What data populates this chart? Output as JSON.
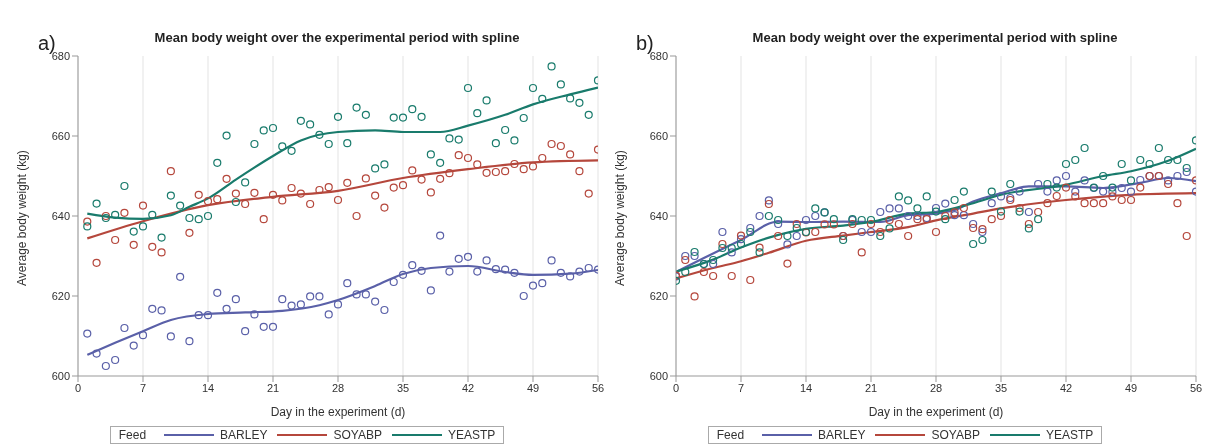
{
  "chart_data": [
    {
      "type": "scatter",
      "title": "Mean body weight over the experimental period with spline",
      "xlabel": "Day in the experiment (d)",
      "ylabel": "Average body weight (kg)",
      "legend_title": "Feed",
      "annotations": [
        "a)"
      ],
      "xlim": [
        0,
        56
      ],
      "xticks": [
        0,
        7,
        14,
        21,
        28,
        35,
        42,
        49,
        56
      ],
      "ylim": [
        600,
        680
      ],
      "yticks": [
        600,
        620,
        640,
        660,
        680
      ],
      "grid": "x",
      "legend": "bottom",
      "series": [
        {
          "type": "scatter",
          "marker": "circle",
          "color": "#5a60a8",
          "x": [
            1,
            2,
            3,
            4,
            5,
            6,
            7,
            8,
            9,
            10,
            11,
            12,
            13,
            14,
            15,
            16,
            17,
            18,
            19,
            20,
            21,
            22,
            23,
            24,
            25,
            26,
            27,
            28,
            29,
            30,
            31,
            32,
            33,
            34,
            35,
            36,
            37,
            38,
            39,
            40,
            41,
            42,
            43,
            44,
            45,
            46,
            47,
            48,
            49,
            50,
            51,
            52,
            53,
            54,
            55,
            56
          ],
          "values": [
            610.6,
            605.6,
            602.5,
            604,
            612,
            607.6,
            610.2,
            616.8,
            616.4,
            609.9,
            624.8,
            608.7,
            615.2,
            615.2,
            620.8,
            616.8,
            619.2,
            611.2,
            615.4,
            612.3,
            612.3,
            619.2,
            617.6,
            617.9,
            619.9,
            619.9,
            615.4,
            617.9,
            623.2,
            620.4,
            620.4,
            618.6,
            616.5,
            623.5,
            625.3,
            627.7,
            626.3,
            621.4,
            635.1,
            626.1,
            629.3,
            629.8,
            626.1,
            628.9,
            626.7,
            626.6,
            625.8,
            620,
            622.6,
            623.2,
            628.9,
            625.8,
            624.9,
            626.1,
            627,
            626.6
          ]
        },
        {
          "type": "scatter",
          "marker": "circle",
          "color": "#b5473c",
          "x": [
            1,
            2,
            3,
            4,
            5,
            6,
            7,
            8,
            9,
            10,
            11,
            12,
            13,
            14,
            15,
            16,
            17,
            18,
            19,
            20,
            21,
            22,
            23,
            24,
            25,
            26,
            27,
            28,
            29,
            30,
            31,
            32,
            33,
            34,
            35,
            36,
            37,
            38,
            39,
            40,
            41,
            42,
            43,
            44,
            45,
            46,
            47,
            48,
            49,
            50,
            51,
            52,
            53,
            54,
            55,
            56
          ],
          "values": [
            638.6,
            628.3,
            640,
            634,
            640.8,
            632.8,
            642.6,
            632.3,
            630.9,
            651.2,
            null,
            635.8,
            645.3,
            643.7,
            644.2,
            649.3,
            645.6,
            643,
            645.8,
            639.2,
            645.3,
            643.9,
            647,
            645.6,
            643,
            646.5,
            647.2,
            644,
            648.3,
            640,
            649.4,
            645.1,
            642.1,
            647.1,
            647.7,
            651.4,
            649.1,
            645.9,
            649.3,
            650.7,
            655.2,
            654.5,
            652.9,
            650.8,
            651,
            651.2,
            653,
            651.7,
            652.4,
            654.5,
            658,
            657.5,
            655.4,
            651.2,
            645.6,
            656.6
          ]
        },
        {
          "type": "scatter",
          "marker": "circle",
          "color": "#197b6c",
          "x": [
            1,
            2,
            3,
            4,
            5,
            6,
            7,
            8,
            9,
            10,
            11,
            12,
            13,
            14,
            15,
            16,
            17,
            18,
            19,
            20,
            21,
            22,
            23,
            24,
            25,
            26,
            27,
            28,
            29,
            30,
            31,
            32,
            33,
            34,
            35,
            36,
            37,
            38,
            39,
            40,
            41,
            42,
            43,
            44,
            45,
            46,
            47,
            48,
            49,
            50,
            51,
            52,
            53,
            54,
            55,
            56
          ],
          "values": [
            637.4,
            643.1,
            639.5,
            640.3,
            647.5,
            636.1,
            637.4,
            640.3,
            634.6,
            645.1,
            642.6,
            639.5,
            639.2,
            640,
            653.3,
            660.1,
            643.5,
            648.4,
            658,
            661.4,
            662,
            657.4,
            656.3,
            663.8,
            662.9,
            660.3,
            658,
            664.8,
            658.2,
            667.1,
            665.3,
            651.9,
            652.9,
            664.6,
            664.6,
            666.7,
            664.8,
            655.4,
            653.3,
            659.4,
            659.1,
            672,
            665.7,
            668.9,
            658.2,
            661.5,
            658.9,
            664.5,
            672,
            669.3,
            677.4,
            672.9,
            669.4,
            668.3,
            665.3,
            673.9
          ]
        },
        {
          "type": "line",
          "marker": "none",
          "name": "BARLEY",
          "color": "#5a60a8",
          "x": [
            1,
            4,
            7,
            10,
            14,
            18,
            22,
            26,
            28,
            32,
            35,
            38,
            42,
            46,
            49,
            53,
            56
          ],
          "values": [
            605.3,
            608.3,
            611.2,
            614,
            615.5,
            615.9,
            616.3,
            617.7,
            619,
            622.5,
            625.5,
            627,
            627.5,
            626,
            625.3,
            625.6,
            626.5
          ]
        },
        {
          "type": "line",
          "marker": "none",
          "name": "SOYABP",
          "color": "#b5473c",
          "x": [
            1,
            7,
            14,
            21,
            28,
            35,
            42,
            49,
            56
          ],
          "values": [
            634.4,
            638.7,
            642.7,
            644.8,
            646.3,
            649.5,
            651.7,
            653.4,
            653.9
          ]
        },
        {
          "type": "line",
          "marker": "none",
          "name": "YEASTP",
          "color": "#197b6c",
          "x": [
            1,
            4,
            7,
            10,
            12,
            14,
            17,
            21,
            24,
            28,
            32,
            35,
            39,
            42,
            46,
            49,
            53,
            56
          ],
          "values": [
            640.6,
            639.6,
            639.3,
            640.2,
            642.3,
            644.4,
            649.1,
            655,
            658.9,
            661,
            661.4,
            661,
            661,
            662.6,
            665.3,
            667.9,
            670.4,
            672.1
          ]
        }
      ]
    },
    {
      "type": "scatter",
      "title": "Mean body weight over the experimental period with spline",
      "xlabel": "Day in the experiment (d)",
      "ylabel": "Average body weight (kg)",
      "legend_title": "Feed",
      "annotations": [
        "b)"
      ],
      "xlim": [
        0,
        56
      ],
      "xticks": [
        0,
        7,
        14,
        21,
        28,
        35,
        42,
        49,
        56
      ],
      "ylim": [
        600,
        680
      ],
      "yticks": [
        600,
        620,
        640,
        660,
        680
      ],
      "grid": "x",
      "legend": "bottom",
      "series": [
        {
          "type": "scatter",
          "marker": "circle",
          "color": "#5a60a8",
          "x": [
            0,
            1,
            2,
            3,
            4,
            5,
            6,
            7,
            8,
            9,
            10,
            11,
            12,
            13,
            14,
            15,
            16,
            17,
            18,
            19,
            20,
            21,
            22,
            23,
            24,
            25,
            26,
            27,
            28,
            29,
            30,
            31,
            32,
            33,
            34,
            35,
            36,
            37,
            38,
            39,
            40,
            41,
            42,
            43,
            44,
            45,
            46,
            47,
            48,
            49,
            50,
            51,
            52,
            53,
            54,
            55,
            56
          ],
          "values": [
            624.9,
            630,
            630,
            628,
            628,
            636,
            630.9,
            634.2,
            637,
            640,
            643.9,
            638,
            632.9,
            635,
            639,
            640,
            640.9,
            null,
            635,
            639,
            636,
            636,
            641,
            641.9,
            641.9,
            640,
            640,
            639.5,
            642,
            643.1,
            640.2,
            640.2,
            638,
            636,
            643.2,
            644.9,
            644.5,
            646.1,
            641,
            648,
            646.1,
            648.9,
            650,
            646.1,
            648.9,
            647,
            646.1,
            646,
            647,
            646.1,
            649,
            650,
            650,
            648.9,
            650,
            651,
            646.1
          ]
        },
        {
          "type": "scatter",
          "marker": "circle",
          "color": "#b5473c",
          "x": [
            0,
            1,
            2,
            3,
            4,
            5,
            6,
            7,
            8,
            9,
            10,
            11,
            12,
            13,
            14,
            15,
            16,
            17,
            18,
            19,
            20,
            21,
            22,
            23,
            24,
            25,
            26,
            27,
            28,
            29,
            30,
            31,
            32,
            33,
            34,
            35,
            36,
            37,
            38,
            39,
            40,
            41,
            42,
            43,
            44,
            45,
            46,
            47,
            48,
            49,
            50,
            51,
            52,
            53,
            54,
            55,
            56
          ],
          "values": [
            625.1,
            629,
            619.9,
            626,
            625,
            633,
            625,
            635.1,
            624,
            632.1,
            643,
            635,
            628.1,
            638,
            635.9,
            636,
            637.9,
            637.9,
            635,
            638,
            630.9,
            638,
            636,
            639,
            638,
            635,
            639.2,
            639.2,
            636,
            640,
            640.9,
            642,
            637,
            636.7,
            639.2,
            640,
            644,
            642,
            638,
            641,
            643.2,
            645,
            647.1,
            644.9,
            643.2,
            643.2,
            643.2,
            644.9,
            644,
            644,
            647.1,
            650,
            650,
            648,
            643.2,
            635,
            648.9
          ]
        },
        {
          "type": "scatter",
          "marker": "circle",
          "color": "#197b6c",
          "x": [
            0,
            1,
            2,
            3,
            4,
            5,
            6,
            7,
            8,
            9,
            10,
            11,
            12,
            13,
            14,
            15,
            16,
            17,
            18,
            19,
            20,
            21,
            22,
            23,
            24,
            25,
            26,
            27,
            28,
            29,
            30,
            31,
            32,
            33,
            34,
            35,
            36,
            37,
            38,
            39,
            40,
            41,
            42,
            43,
            44,
            45,
            46,
            47,
            48,
            49,
            50,
            51,
            52,
            53,
            54,
            55,
            56
          ],
          "values": [
            623.8,
            626,
            631,
            628,
            629,
            632,
            632,
            633,
            636,
            630.9,
            640,
            639,
            635,
            637,
            636,
            641.9,
            640.9,
            639.2,
            634,
            639.2,
            639,
            639,
            635,
            636.9,
            644.9,
            643.9,
            641.9,
            644.9,
            641.1,
            639.2,
            644,
            646.1,
            633,
            634,
            646.1,
            641.1,
            648,
            641.1,
            636.9,
            639.2,
            648,
            647.1,
            653,
            654,
            657,
            647.1,
            650,
            647.1,
            653,
            648.9,
            654,
            653,
            657,
            654,
            654,
            652,
            658.9
          ]
        },
        {
          "type": "line",
          "marker": "none",
          "name": "BARLEY",
          "color": "#5a60a8",
          "x": [
            0,
            3,
            7,
            11,
            14,
            18,
            22,
            25,
            28,
            30,
            32,
            35,
            38,
            42,
            46,
            50,
            53,
            56
          ],
          "values": [
            626,
            629.5,
            634,
            638.6,
            638.5,
            638.6,
            638.5,
            640.2,
            640.6,
            641.5,
            643.6,
            645.7,
            647.4,
            647.4,
            647,
            648.3,
            649.5,
            648.7
          ]
        },
        {
          "type": "line",
          "marker": "none",
          "name": "SOYABP",
          "color": "#b5473c",
          "x": [
            0,
            4,
            7,
            10,
            14,
            18,
            21,
            25,
            28,
            32,
            35,
            42,
            49,
            56
          ],
          "values": [
            624.4,
            627,
            628.7,
            630.8,
            633.8,
            635.1,
            636,
            637.2,
            638.9,
            640.6,
            641.9,
            644,
            645.3,
            645.7
          ]
        },
        {
          "type": "line",
          "marker": "none",
          "name": "YEASTP",
          "color": "#197b6c",
          "x": [
            0,
            4,
            7,
            10,
            14,
            18,
            21,
            25,
            28,
            32,
            35,
            42,
            46,
            49,
            53,
            56
          ],
          "values": [
            626.1,
            629.1,
            632.1,
            634.6,
            636.8,
            637.6,
            638.5,
            640.6,
            641,
            643.2,
            645.3,
            647.8,
            650,
            651.2,
            653.8,
            656.8
          ]
        }
      ]
    }
  ]
}
